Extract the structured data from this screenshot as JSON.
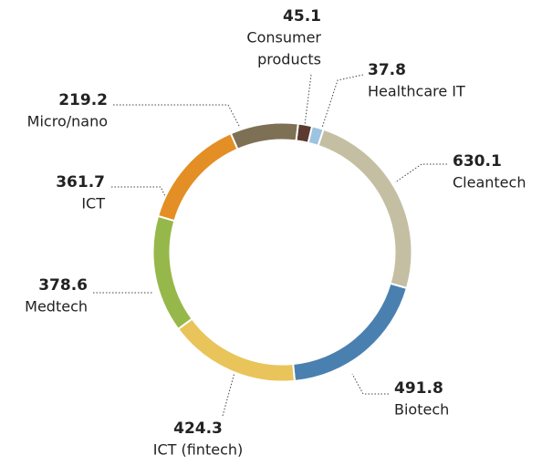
{
  "chart_data": {
    "type": "donut",
    "categories": [
      "Consumer products",
      "Healthcare IT",
      "Cleantech",
      "Biotech",
      "ICT (fintech)",
      "Medtech",
      "ICT",
      "Micro/nano"
    ],
    "category_lines": [
      [
        "Consumer",
        "products"
      ],
      [
        "Healthcare IT"
      ],
      [
        "Cleantech"
      ],
      [
        "Biotech"
      ],
      [
        "ICT (fintech)"
      ],
      [
        "Medtech"
      ],
      [
        "ICT"
      ],
      [
        "Micro/nano"
      ]
    ],
    "values": [
      45.1,
      37.8,
      630.1,
      491.8,
      424.3,
      378.6,
      361.7,
      219.2
    ],
    "colors": [
      "#5c3a30",
      "#9cc3e0",
      "#c4bfa3",
      "#4a80b0",
      "#e8c45a",
      "#96b84a",
      "#e38f25",
      "#7d7055"
    ]
  }
}
